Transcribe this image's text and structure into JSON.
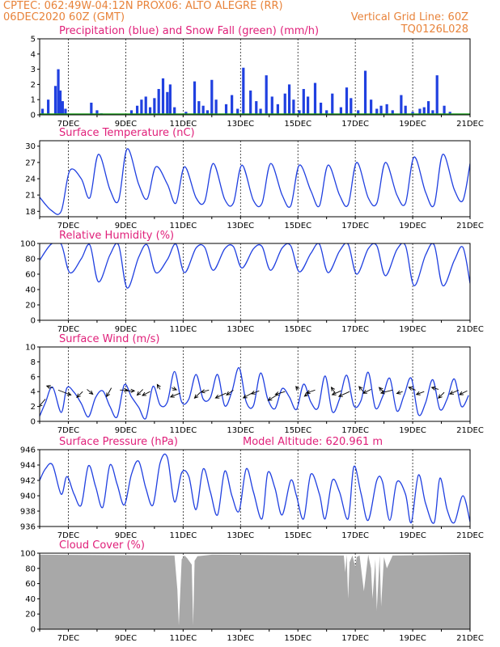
{
  "header": {
    "line1_left": "CPTEC:   062:49W-04:12N   PROX06: ALTO ALEGRE (RR)",
    "line2_left": "06DEC2020 60Z (GMT)",
    "line2_right": "Vertical Grid Line: 60Z",
    "line3_right": "TQ0126L028"
  },
  "colors": {
    "header": "#e8833a",
    "title": "#e0207a",
    "series": "#2040e0",
    "snow": "#20a020",
    "cloud": "#a8a8a8"
  },
  "x_axis": {
    "range_days": [
      6.0,
      21.0
    ],
    "tick_days": [
      7,
      9,
      11,
      13,
      15,
      17,
      19,
      21
    ],
    "tick_labels": [
      "7DEC",
      "9DEC",
      "11DEC",
      "13DEC",
      "15DEC",
      "17DEC",
      "19DEC",
      "21DEC"
    ]
  },
  "chart_data": [
    {
      "type": "bar",
      "title": "Precipitation (blue) and Snow Fall (green) (mm/h)",
      "ylim": [
        0,
        5
      ],
      "yticks": [
        0,
        1,
        2,
        3,
        4,
        5
      ],
      "series": [
        {
          "name": "Precipitation",
          "x": [
            6.1,
            6.3,
            6.55,
            6.65,
            6.72,
            6.8,
            6.9,
            7.8,
            8.0,
            8.15,
            9.2,
            9.4,
            9.55,
            9.7,
            9.85,
            10.0,
            10.15,
            10.3,
            10.45,
            10.55,
            10.7,
            11.1,
            11.4,
            11.55,
            11.7,
            11.85,
            12.0,
            12.15,
            12.5,
            12.7,
            12.9,
            13.1,
            13.35,
            13.55,
            13.7,
            13.9,
            14.1,
            14.3,
            14.55,
            14.7,
            14.85,
            15.05,
            15.2,
            15.35,
            15.6,
            15.8,
            16.0,
            16.2,
            16.5,
            16.7,
            16.85,
            17.1,
            17.35,
            17.55,
            17.75,
            17.9,
            18.1,
            18.3,
            18.6,
            18.75,
            19.0,
            19.25,
            19.4,
            19.55,
            19.7,
            19.85,
            20.1,
            20.3
          ],
          "values": [
            0.4,
            1.0,
            1.9,
            3.0,
            1.6,
            0.9,
            0.4,
            0.8,
            0.3,
            0.1,
            0.3,
            0.6,
            1.0,
            1.2,
            0.5,
            1.1,
            1.7,
            2.4,
            1.5,
            2.0,
            0.5,
            0.2,
            2.2,
            0.9,
            0.6,
            0.3,
            2.3,
            1.0,
            0.7,
            1.3,
            0.4,
            3.1,
            1.6,
            0.9,
            0.4,
            2.6,
            1.2,
            0.7,
            1.4,
            2.0,
            1.0,
            0.3,
            1.7,
            1.2,
            2.1,
            0.8,
            0.3,
            1.4,
            0.5,
            1.8,
            1.1,
            0.3,
            2.9,
            1.0,
            0.4,
            0.6,
            0.7,
            0.3,
            1.3,
            0.6,
            0.2,
            0.4,
            0.5,
            0.9,
            0.3,
            2.6,
            0.6,
            0.2
          ]
        },
        {
          "name": "Snow Fall",
          "x": [
            6.0,
            21.0
          ],
          "values": [
            0.0,
            0.0
          ]
        }
      ]
    },
    {
      "type": "line",
      "title": "Surface Temperature (nC)",
      "ylim": [
        17,
        31
      ],
      "yticks": [
        18,
        21,
        24,
        27,
        30
      ],
      "series": [
        {
          "name": "Surface Temperature",
          "x": [
            6.0,
            6.4,
            6.75,
            7.05,
            7.45,
            7.75,
            8.05,
            8.45,
            8.75,
            9.05,
            9.45,
            9.75,
            10.05,
            10.45,
            10.75,
            11.05,
            11.45,
            11.75,
            12.05,
            12.45,
            12.75,
            13.05,
            13.45,
            13.75,
            14.05,
            14.45,
            14.75,
            15.05,
            15.45,
            15.75,
            16.05,
            16.45,
            16.75,
            17.05,
            17.45,
            17.75,
            18.05,
            18.45,
            18.75,
            19.05,
            19.45,
            19.75,
            20.05,
            20.45,
            20.75,
            21.0
          ],
          "values": [
            20.6,
            18.2,
            18.0,
            25.5,
            24.0,
            20.5,
            28.5,
            22.0,
            20.0,
            29.5,
            23.0,
            20.3,
            26.2,
            23.0,
            19.5,
            26.2,
            20.5,
            19.8,
            26.8,
            20.2,
            19.5,
            26.5,
            20.0,
            19.5,
            26.8,
            21.0,
            19.0,
            26.5,
            21.8,
            19.0,
            26.5,
            21.0,
            19.2,
            27.0,
            20.5,
            19.5,
            27.0,
            21.0,
            19.5,
            28.0,
            21.5,
            19.2,
            28.5,
            22.0,
            20.0,
            26.8
          ]
        }
      ]
    },
    {
      "type": "line",
      "title": "Relative Humidity (%)",
      "ylim": [
        0,
        100
      ],
      "yticks": [
        0,
        20,
        40,
        60,
        80,
        100
      ],
      "series": [
        {
          "name": "Relative Humidity",
          "x": [
            6.0,
            6.4,
            6.75,
            7.05,
            7.45,
            7.75,
            8.05,
            8.45,
            8.75,
            9.05,
            9.45,
            9.75,
            10.05,
            10.45,
            10.75,
            11.05,
            11.45,
            11.75,
            12.05,
            12.45,
            12.75,
            13.05,
            13.45,
            13.75,
            14.05,
            14.45,
            14.75,
            15.05,
            15.45,
            15.75,
            16.05,
            16.45,
            16.75,
            17.05,
            17.45,
            17.75,
            18.05,
            18.45,
            18.75,
            19.05,
            19.45,
            19.75,
            20.05,
            20.45,
            20.75,
            21.0
          ],
          "values": [
            78,
            99,
            99,
            62,
            80,
            98,
            50,
            85,
            98,
            42,
            82,
            98,
            62,
            79,
            99,
            62,
            94,
            95,
            65,
            93,
            96,
            68,
            93,
            96,
            65,
            94,
            97,
            63,
            87,
            99,
            62,
            90,
            99,
            60,
            93,
            97,
            58,
            92,
            97,
            45,
            85,
            98,
            45,
            78,
            95,
            48
          ]
        }
      ]
    },
    {
      "type": "line",
      "title": "Surface Wind (m/s)",
      "ylim": [
        0,
        10
      ],
      "yticks": [
        0,
        2,
        4,
        6,
        8,
        10
      ],
      "series": [
        {
          "name": "Surface Wind",
          "x": [
            6.0,
            6.2,
            6.45,
            6.75,
            6.95,
            7.2,
            7.45,
            7.7,
            7.95,
            8.2,
            8.45,
            8.7,
            8.95,
            9.2,
            9.45,
            9.7,
            9.95,
            10.2,
            10.45,
            10.7,
            10.95,
            11.2,
            11.45,
            11.7,
            11.95,
            12.2,
            12.45,
            12.7,
            12.95,
            13.2,
            13.45,
            13.7,
            13.95,
            14.2,
            14.45,
            14.7,
            14.95,
            15.2,
            15.45,
            15.7,
            15.95,
            16.2,
            16.45,
            16.7,
            16.95,
            17.2,
            17.45,
            17.7,
            17.95,
            18.2,
            18.45,
            18.7,
            18.95,
            19.2,
            19.45,
            19.7,
            19.95,
            20.2,
            20.45,
            20.7,
            20.95
          ],
          "values": [
            0.7,
            2.5,
            4.6,
            1.2,
            4.5,
            3.9,
            2.4,
            0.6,
            3.2,
            4.1,
            2.0,
            0.6,
            4.9,
            3.3,
            1.9,
            0.4,
            4.7,
            2.2,
            2.6,
            6.7,
            2.6,
            3.0,
            6.3,
            3.0,
            3.2,
            6.3,
            2.1,
            4.0,
            7.2,
            2.6,
            2.1,
            6.5,
            3.0,
            1.7,
            4.4,
            3.3,
            1.6,
            5.0,
            2.6,
            1.8,
            6.1,
            1.3,
            3.0,
            6.2,
            2.1,
            2.8,
            6.6,
            1.8,
            3.3,
            5.8,
            1.4,
            3.5,
            5.8,
            0.9,
            2.5,
            5.6,
            1.6,
            3.0,
            5.7,
            2.0,
            3.5
          ]
        }
      ],
      "wind_vectors": {
        "x": [
          6.2,
          6.45,
          6.65,
          7.5,
          7.65,
          8.5,
          8.8,
          9.0,
          9.6,
          9.85,
          10.2,
          10.6,
          10.9,
          11.6,
          11.9,
          12.5,
          12.75,
          13.4,
          13.65,
          14.3,
          14.55,
          15.0,
          15.4,
          15.6,
          16.3,
          16.5,
          16.8,
          17.3,
          17.55,
          18.0,
          18.3,
          18.65,
          19.1,
          19.4,
          19.9,
          20.1,
          20.6,
          20.9
        ],
        "y": [
          3.0,
          4.5,
          4.2,
          4.0,
          4.3,
          4.5,
          4.2,
          4.1,
          4.3,
          4.0,
          4.3,
          4.5,
          3.8,
          3.9,
          4.2,
          3.8,
          4.2,
          3.8,
          4.1,
          3.6,
          4.0,
          4.3,
          3.9,
          4.2,
          3.8,
          4.1,
          4.0,
          3.9,
          4.3,
          3.9,
          4.2,
          4.0,
          4.2,
          4.0,
          4.3,
          3.9,
          4.2,
          4.1
        ],
        "u": [
          -0.7,
          -0.6,
          1.3,
          -0.6,
          0.6,
          -0.5,
          0.8,
          0.9,
          -0.6,
          -0.8,
          -0.3,
          0.5,
          -1.0,
          -0.6,
          -0.8,
          -1.1,
          -0.7,
          -0.9,
          -0.8,
          -1.0,
          -1.0,
          -0.2,
          -0.5,
          -0.9,
          -0.4,
          -0.9,
          -1.1,
          -0.5,
          -0.8,
          -0.5,
          -1.2,
          -0.6,
          -0.7,
          -0.8,
          -0.7,
          -0.6,
          -0.9,
          -0.8
        ],
        "v": [
          -0.8,
          0.2,
          -0.5,
          -0.6,
          -0.5,
          -0.9,
          0.0,
          0.0,
          -0.6,
          -0.4,
          0.5,
          -0.2,
          -0.4,
          -0.6,
          -0.2,
          -0.5,
          -0.5,
          -0.5,
          -0.3,
          -0.6,
          -0.3,
          0.3,
          -0.4,
          -0.3,
          0.6,
          -0.4,
          -0.5,
          0.6,
          -0.4,
          0.5,
          -0.3,
          -0.2,
          0.3,
          -0.3,
          0.2,
          -0.6,
          -0.4,
          -0.4
        ]
      }
    },
    {
      "type": "line",
      "title": "Surface Pressure (hPa)",
      "annotation": "Model Altitude: 620.961 m",
      "ylim": [
        936,
        946
      ],
      "yticks": [
        936,
        938,
        940,
        942,
        944,
        946
      ],
      "series": [
        {
          "name": "Surface Pressure",
          "x": [
            6.0,
            6.2,
            6.45,
            6.75,
            6.95,
            7.2,
            7.45,
            7.7,
            7.95,
            8.2,
            8.45,
            8.7,
            8.95,
            9.2,
            9.45,
            9.7,
            9.95,
            10.2,
            10.45,
            10.7,
            10.95,
            11.2,
            11.45,
            11.7,
            11.95,
            12.2,
            12.45,
            12.7,
            12.95,
            13.2,
            13.45,
            13.75,
            13.95,
            14.2,
            14.45,
            14.75,
            14.95,
            15.2,
            15.45,
            15.75,
            15.95,
            16.2,
            16.45,
            16.75,
            16.95,
            17.2,
            17.45,
            17.75,
            17.95,
            18.2,
            18.45,
            18.75,
            18.95,
            19.2,
            19.45,
            19.75,
            19.95,
            20.2,
            20.45,
            20.75,
            21.0
          ],
          "values": [
            942.0,
            943.5,
            944.0,
            940.2,
            942.5,
            940.2,
            938.8,
            943.9,
            941.2,
            938.5,
            944.0,
            941.5,
            938.8,
            942.8,
            944.5,
            941.0,
            938.8,
            944.3,
            945.0,
            939.2,
            943.0,
            942.5,
            938.2,
            943.5,
            940.5,
            937.5,
            943.2,
            940.0,
            938.0,
            943.5,
            940.5,
            937.0,
            943.0,
            941.0,
            937.5,
            942.0,
            940.0,
            937.0,
            942.8,
            940.2,
            937.0,
            942.0,
            940.5,
            937.0,
            943.8,
            940.3,
            936.8,
            942.0,
            941.8,
            936.8,
            941.8,
            940.2,
            936.5,
            942.7,
            939.0,
            936.5,
            942.3,
            938.2,
            936.5,
            940.0,
            936.6
          ]
        }
      ]
    },
    {
      "type": "area",
      "title": "Cloud Cover (%)",
      "ylim": [
        0,
        100
      ],
      "yticks": [
        0,
        20,
        40,
        60,
        80,
        100
      ],
      "series": [
        {
          "name": "Cloud Cover",
          "x": [
            6.0,
            10.7,
            10.8,
            10.85,
            10.95,
            11.05,
            11.15,
            11.3,
            11.35,
            11.4,
            11.5,
            12.0,
            16.6,
            16.65,
            16.7,
            16.75,
            16.8,
            16.9,
            17.0,
            17.05,
            17.15,
            17.3,
            17.45,
            17.55,
            17.6,
            17.7,
            17.75,
            17.85,
            17.9,
            18.0,
            18.1,
            18.3,
            21.0
          ],
          "values": [
            98,
            97,
            52,
            5,
            92,
            97,
            93,
            85,
            5,
            90,
            96,
            98,
            97,
            75,
            98,
            40,
            88,
            97,
            82,
            95,
            97,
            50,
            98,
            80,
            40,
            92,
            25,
            97,
            30,
            95,
            80,
            97,
            98
          ]
        }
      ]
    }
  ]
}
